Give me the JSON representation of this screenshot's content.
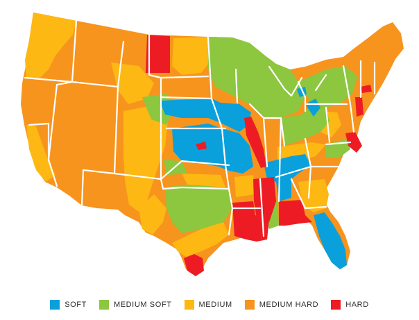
{
  "colors": {
    "soft": "#0aa0dc",
    "medium_soft": "#8dc63f",
    "medium": "#fdb813",
    "medium_hard": "#f7941d",
    "hard": "#ed1c24"
  },
  "legend": [
    {
      "label": "SOFT",
      "color": "#0aa0dc"
    },
    {
      "label": "MEDIUM SOFT",
      "color": "#8dc63f"
    },
    {
      "label": "MEDIUM",
      "color": "#fdb813"
    },
    {
      "label": "MEDIUM HARD",
      "color": "#f7941d"
    },
    {
      "label": "HARD",
      "color": "#ed1c24"
    }
  ]
}
